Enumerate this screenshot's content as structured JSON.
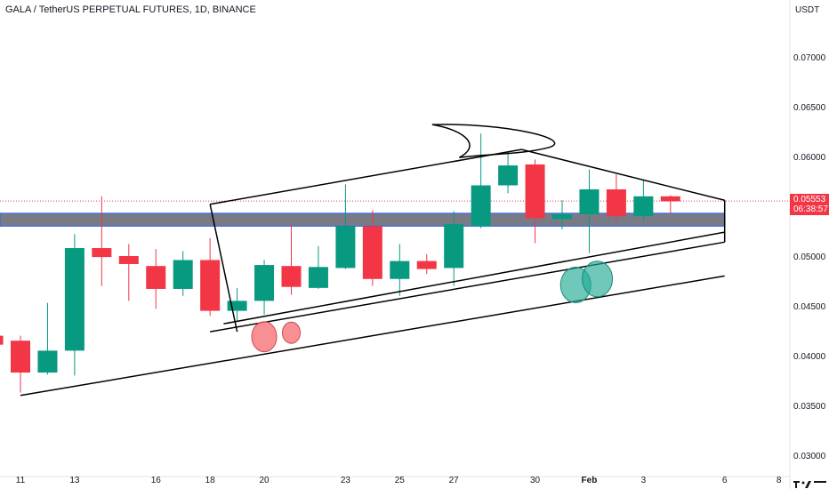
{
  "header": {
    "title": "GALA / TetherUS PERPETUAL FUTURES, 1D, BINANCE"
  },
  "y_axis": {
    "unit": "USDT",
    "ticks": [
      "0.07000",
      "0.06500",
      "0.06000",
      "0.05500",
      "0.05000",
      "0.04500",
      "0.04000",
      "0.03500",
      "0.03000"
    ]
  },
  "price_tag": {
    "price": "0.05553",
    "countdown": "06:38:57"
  },
  "colors": {
    "up": "#089981",
    "down": "#f23645",
    "zone_fill": "#787b86",
    "zone_border": "#2962ff",
    "trendline": "#000000",
    "marker_red": "#f77c80",
    "marker_green": "#22ab94"
  },
  "chart_data": {
    "type": "candlestick",
    "title": "GALA / TetherUS PERPETUAL FUTURES, 1D, BINANCE",
    "y_unit": "USDT",
    "ylim": [
      0.0295,
      0.0725
    ],
    "x_ticks": [
      {
        "label": "11",
        "day": 0
      },
      {
        "label": "13",
        "day": 2
      },
      {
        "label": "16",
        "day": 5
      },
      {
        "label": "18",
        "day": 7
      },
      {
        "label": "20",
        "day": 9
      },
      {
        "label": "23",
        "day": 12
      },
      {
        "label": "25",
        "day": 14
      },
      {
        "label": "27",
        "day": 16
      },
      {
        "label": "30",
        "day": 19
      },
      {
        "label": "Feb",
        "day": 21,
        "bold": true
      },
      {
        "label": "3",
        "day": 23
      },
      {
        "label": "6",
        "day": 26
      },
      {
        "label": "8",
        "day": 28
      }
    ],
    "candles": [
      {
        "day": -1,
        "open": 0.042,
        "high": 0.0422,
        "low": 0.041,
        "close": 0.0411
      },
      {
        "day": 0,
        "open": 0.0415,
        "high": 0.042,
        "low": 0.0363,
        "close": 0.0383
      },
      {
        "day": 1,
        "open": 0.0383,
        "high": 0.0453,
        "low": 0.0381,
        "close": 0.0405
      },
      {
        "day": 2,
        "open": 0.0405,
        "high": 0.0522,
        "low": 0.038,
        "close": 0.0508
      },
      {
        "day": 3,
        "open": 0.0508,
        "high": 0.056,
        "low": 0.047,
        "close": 0.0499
      },
      {
        "day": 4,
        "open": 0.05,
        "high": 0.0512,
        "low": 0.0455,
        "close": 0.0492
      },
      {
        "day": 5,
        "open": 0.049,
        "high": 0.0507,
        "low": 0.0447,
        "close": 0.0467
      },
      {
        "day": 6,
        "open": 0.0467,
        "high": 0.0505,
        "low": 0.046,
        "close": 0.0496
      },
      {
        "day": 7,
        "open": 0.0496,
        "high": 0.0518,
        "low": 0.044,
        "close": 0.0445
      },
      {
        "day": 8,
        "open": 0.0445,
        "high": 0.0468,
        "low": 0.0435,
        "close": 0.0455
      },
      {
        "day": 9,
        "open": 0.0455,
        "high": 0.0496,
        "low": 0.0441,
        "close": 0.0491
      },
      {
        "day": 10,
        "open": 0.049,
        "high": 0.0532,
        "low": 0.0461,
        "close": 0.0469
      },
      {
        "day": 11,
        "open": 0.0468,
        "high": 0.051,
        "low": 0.0467,
        "close": 0.0489
      },
      {
        "day": 12,
        "open": 0.0488,
        "high": 0.0572,
        "low": 0.0487,
        "close": 0.053
      },
      {
        "day": 13,
        "open": 0.053,
        "high": 0.0546,
        "low": 0.047,
        "close": 0.0477
      },
      {
        "day": 14,
        "open": 0.0477,
        "high": 0.0512,
        "low": 0.046,
        "close": 0.0495
      },
      {
        "day": 15,
        "open": 0.0495,
        "high": 0.0502,
        "low": 0.0482,
        "close": 0.0487
      },
      {
        "day": 16,
        "open": 0.0488,
        "high": 0.0545,
        "low": 0.047,
        "close": 0.0532
      },
      {
        "day": 17,
        "open": 0.053,
        "high": 0.0623,
        "low": 0.0528,
        "close": 0.0571
      },
      {
        "day": 18,
        "open": 0.0571,
        "high": 0.0604,
        "low": 0.0563,
        "close": 0.0591
      },
      {
        "day": 19,
        "open": 0.0592,
        "high": 0.0597,
        "low": 0.0513,
        "close": 0.0538
      },
      {
        "day": 20,
        "open": 0.0537,
        "high": 0.0556,
        "low": 0.0527,
        "close": 0.0542
      },
      {
        "day": 21,
        "open": 0.0542,
        "high": 0.0587,
        "low": 0.0503,
        "close": 0.0567
      },
      {
        "day": 22,
        "open": 0.0567,
        "high": 0.0582,
        "low": 0.0534,
        "close": 0.054
      },
      {
        "day": 23,
        "open": 0.054,
        "high": 0.0577,
        "low": 0.0535,
        "close": 0.056
      },
      {
        "day": 24,
        "open": 0.056,
        "high": 0.0561,
        "low": 0.0543,
        "close": 0.0555
      }
    ],
    "zone": {
      "from": 0.053,
      "to": 0.0543
    },
    "last_price": 0.05553,
    "lines": [
      {
        "name": "lower-trendline",
        "points": [
          [
            0,
            0.036
          ],
          [
            26,
            0.048
          ]
        ]
      },
      {
        "name": "channel-lower",
        "points": [
          [
            7,
            0.0424
          ],
          [
            26,
            0.0514
          ]
        ]
      },
      {
        "name": "channel-upper",
        "points": [
          [
            7.5,
            0.0432
          ],
          [
            26,
            0.0524
          ]
        ]
      },
      {
        "name": "pennant-upper",
        "points": [
          [
            7,
            0.0552
          ],
          [
            18.5,
            0.0607
          ]
        ]
      },
      {
        "name": "pennant-left",
        "points": [
          [
            7,
            0.0552
          ],
          [
            8,
            0.0424
          ]
        ]
      },
      {
        "name": "descending-resistance",
        "points": [
          [
            18.5,
            0.0607
          ],
          [
            26,
            0.0556
          ]
        ]
      },
      {
        "name": "right-edge",
        "points": [
          [
            26,
            0.0556
          ],
          [
            26,
            0.0514
          ]
        ]
      }
    ],
    "markers": [
      {
        "day": 9,
        "price": 0.0419,
        "color": "red"
      },
      {
        "day": 10,
        "price": 0.0423,
        "color": "red"
      },
      {
        "day": 20.5,
        "price": 0.0471,
        "color": "green"
      },
      {
        "day": 21.3,
        "price": 0.0477,
        "color": "green"
      }
    ]
  }
}
